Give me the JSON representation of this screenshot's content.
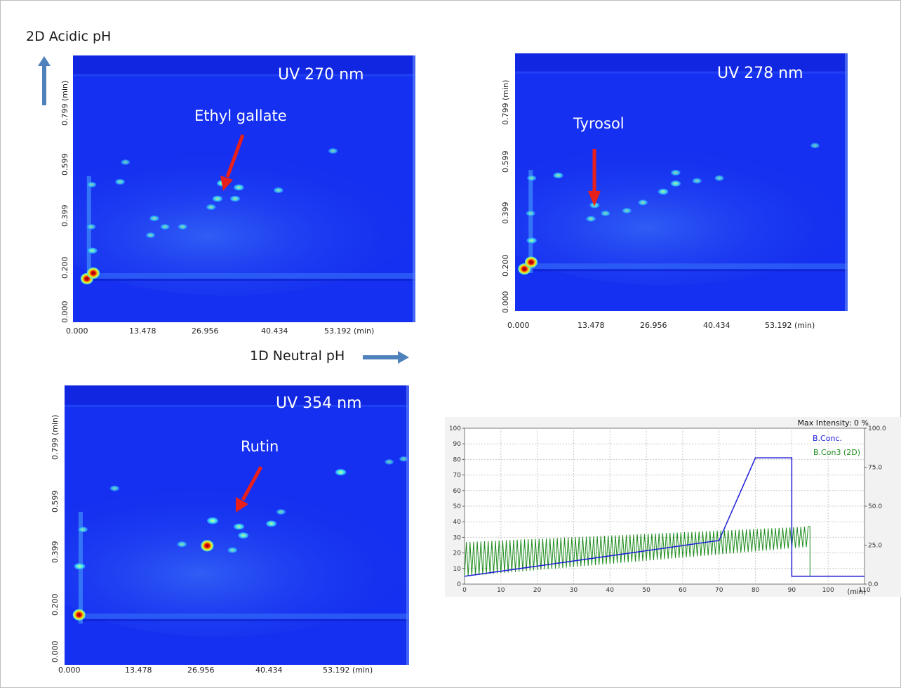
{
  "annotations": {
    "y_axis_label": "2D Acidic pH",
    "x_axis_label": "1D Neutral pH"
  },
  "colors": {
    "heatmap_background": "#1530f0",
    "peak_low": "#3fe7f5",
    "peak_high": "#e01010",
    "arrow_red": "#e8201c",
    "axis_arrow": "#4f81bd",
    "b_conc": "#2020d8",
    "b_con3": "#1e8c1e"
  },
  "heatmaps": [
    {
      "uv_label": "UV 270 nm",
      "compound": "Ethyl gallate",
      "x_ticks": [
        "0.000",
        "13.478",
        "26.956",
        "40.434",
        "53.192 (min)"
      ],
      "y_ticks": [
        "0.000",
        "0.200",
        "0.399",
        "0.599",
        "0.799 (min)"
      ]
    },
    {
      "uv_label": "UV 278 nm",
      "compound": "Tyrosol",
      "x_ticks": [
        "0.000",
        "13.478",
        "26.956",
        "40.434",
        "53.192 (min)"
      ],
      "y_ticks": [
        "0.000",
        "0.200",
        "0.399",
        "0.599",
        "0.799 (min)"
      ]
    },
    {
      "uv_label": "UV 354 nm",
      "compound": "Rutin",
      "x_ticks": [
        "0.000",
        "13.478",
        "26.956",
        "40.434",
        "53.192 (min)"
      ],
      "y_ticks": [
        "0.000",
        "0.200",
        "0.399",
        "0.599",
        "0.799 (min)"
      ]
    }
  ],
  "chart_data": [
    {
      "type": "heatmap",
      "title": "UV 270 nm",
      "xlabel": "1D Neutral pH",
      "ylabel": "2D Acidic pH",
      "x_unit": "min",
      "xlim": [
        0,
        64
      ],
      "ylim": [
        0,
        0.95
      ],
      "annotation": "Ethyl gallate",
      "peaks": [
        {
          "x": 2.6,
          "y": 0.155,
          "level": 1.0
        },
        {
          "x": 3.8,
          "y": 0.175,
          "level": 0.95
        },
        {
          "x": 3.6,
          "y": 0.255,
          "level": 0.45
        },
        {
          "x": 3.4,
          "y": 0.34,
          "level": 0.3
        },
        {
          "x": 3.5,
          "y": 0.49,
          "level": 0.3
        },
        {
          "x": 8.8,
          "y": 0.5,
          "level": 0.35
        },
        {
          "x": 14.5,
          "y": 0.31,
          "level": 0.3
        },
        {
          "x": 15.2,
          "y": 0.37,
          "level": 0.35
        },
        {
          "x": 17.2,
          "y": 0.34,
          "level": 0.3
        },
        {
          "x": 20.5,
          "y": 0.34,
          "level": 0.3
        },
        {
          "x": 25.8,
          "y": 0.41,
          "level": 0.35
        },
        {
          "x": 27.9,
          "y": 0.495,
          "level": 0.55
        },
        {
          "x": 27.0,
          "y": 0.44,
          "level": 0.45
        },
        {
          "x": 30.3,
          "y": 0.44,
          "level": 0.4
        },
        {
          "x": 31.0,
          "y": 0.48,
          "level": 0.45
        },
        {
          "x": 38.4,
          "y": 0.47,
          "level": 0.35
        },
        {
          "x": 48.6,
          "y": 0.61,
          "level": 0.3
        },
        {
          "x": 9.8,
          "y": 0.57,
          "level": 0.25
        }
      ]
    },
    {
      "type": "heatmap",
      "title": "UV 278 nm",
      "xlabel": "1D Neutral pH",
      "ylabel": "2D Acidic pH",
      "x_unit": "min",
      "xlim": [
        0,
        64
      ],
      "ylim": [
        0,
        0.95
      ],
      "annotation": "Tyrosol",
      "peaks": [
        {
          "x": 1.8,
          "y": 0.155,
          "level": 1.0
        },
        {
          "x": 3.1,
          "y": 0.18,
          "level": 0.95
        },
        {
          "x": 3.2,
          "y": 0.26,
          "level": 0.45
        },
        {
          "x": 3.0,
          "y": 0.36,
          "level": 0.3
        },
        {
          "x": 3.2,
          "y": 0.49,
          "level": 0.3
        },
        {
          "x": 8.3,
          "y": 0.5,
          "level": 0.4
        },
        {
          "x": 15.3,
          "y": 0.39,
          "level": 0.4
        },
        {
          "x": 14.6,
          "y": 0.34,
          "level": 0.35
        },
        {
          "x": 17.4,
          "y": 0.36,
          "level": 0.3
        },
        {
          "x": 21.5,
          "y": 0.37,
          "level": 0.3
        },
        {
          "x": 24.6,
          "y": 0.4,
          "level": 0.35
        },
        {
          "x": 28.5,
          "y": 0.44,
          "level": 0.45
        },
        {
          "x": 30.9,
          "y": 0.47,
          "level": 0.45
        },
        {
          "x": 30.9,
          "y": 0.51,
          "level": 0.35
        },
        {
          "x": 35.0,
          "y": 0.48,
          "level": 0.3
        },
        {
          "x": 39.3,
          "y": 0.49,
          "level": 0.3
        },
        {
          "x": 57.7,
          "y": 0.61,
          "level": 0.25
        }
      ]
    },
    {
      "type": "heatmap",
      "title": "UV 354 nm",
      "xlabel": "1D Neutral pH",
      "ylabel": "2D Acidic pH",
      "x_unit": "min",
      "xlim": [
        0,
        64
      ],
      "ylim": [
        0,
        0.95
      ],
      "annotation": "Rutin",
      "peaks": [
        {
          "x": 2.7,
          "y": 0.17,
          "level": 1.0
        },
        {
          "x": 2.8,
          "y": 0.335,
          "level": 0.55
        },
        {
          "x": 3.4,
          "y": 0.46,
          "level": 0.35
        },
        {
          "x": 9.3,
          "y": 0.6,
          "level": 0.3
        },
        {
          "x": 21.8,
          "y": 0.41,
          "level": 0.35
        },
        {
          "x": 26.5,
          "y": 0.405,
          "level": 1.0
        },
        {
          "x": 27.5,
          "y": 0.49,
          "level": 0.6
        },
        {
          "x": 31.2,
          "y": 0.39,
          "level": 0.35
        },
        {
          "x": 32.4,
          "y": 0.47,
          "level": 0.5
        },
        {
          "x": 33.2,
          "y": 0.44,
          "level": 0.5
        },
        {
          "x": 38.4,
          "y": 0.48,
          "level": 0.5
        },
        {
          "x": 40.2,
          "y": 0.52,
          "level": 0.3
        },
        {
          "x": 51.3,
          "y": 0.655,
          "level": 0.55
        },
        {
          "x": 60.3,
          "y": 0.69,
          "level": 0.25
        },
        {
          "x": 63.0,
          "y": 0.7,
          "level": 0.25
        }
      ]
    },
    {
      "type": "line",
      "title": "Max Intensity: 0 %",
      "xlabel": "(min)",
      "ylabel": "",
      "xlim": [
        0,
        110
      ],
      "ylim": [
        0,
        100
      ],
      "y2lim": [
        0,
        100
      ],
      "x_ticks": [
        "0",
        "10",
        "20",
        "30",
        "40",
        "50",
        "60",
        "70",
        "80",
        "90",
        "100",
        "110"
      ],
      "y_ticks": [
        "0",
        "10",
        "20",
        "30",
        "40",
        "50",
        "60",
        "70",
        "80",
        "90",
        "100"
      ],
      "y2_ticks": [
        "0.0",
        "25.0",
        "50.0",
        "75.0",
        "100.0"
      ],
      "grid": true,
      "legend": "top-right",
      "series": [
        {
          "name": "B.Conc.",
          "x": [
            0,
            70,
            80,
            90,
            90,
            110
          ],
          "y": [
            5,
            28,
            81,
            81,
            5,
            5
          ]
        },
        {
          "name": "B.Con3 (2D)",
          "pattern": "sawtooth",
          "cycle_min": 1.0,
          "x_range": [
            0,
            95
          ],
          "min_envelope": {
            "x": [
              0,
              95
            ],
            "y": [
              5,
              24
            ]
          },
          "max_envelope": {
            "x": [
              0,
              95
            ],
            "y": [
              27,
              37
            ]
          },
          "after": {
            "x": [
              95,
              95
            ],
            "y": [
              37,
              5
            ]
          }
        }
      ]
    }
  ]
}
